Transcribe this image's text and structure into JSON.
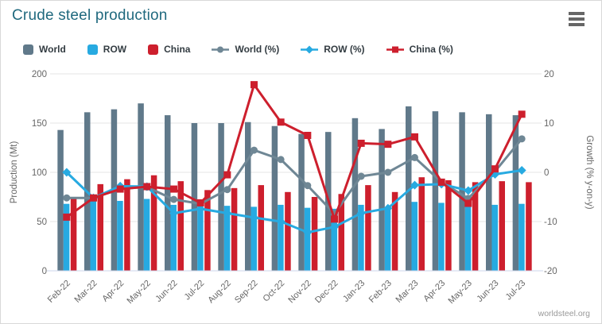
{
  "header": {
    "title": "Crude steel production",
    "menu_icon": "hamburger-icon"
  },
  "footer": {
    "credit": "worldsteel.org"
  },
  "colors": {
    "title": "#20697e",
    "axis_text": "#666666",
    "grid": "#e6e6e6",
    "axis_line": "#ccd6eb",
    "legend_text": "#333c42",
    "menu_icon": "#666666",
    "credit": "#999999"
  },
  "chart_data": {
    "type": "bar+line combo",
    "categories": [
      "Feb-22",
      "Mar-22",
      "Apr-22",
      "May-22",
      "Jun-22",
      "Jul-22",
      "Aug-22",
      "Sep-22",
      "Oct-22",
      "Nov-22",
      "Dec-22",
      "Jan-23",
      "Feb-23",
      "Mar-23",
      "Apr-23",
      "May-23",
      "Jun-23",
      "Jul-23"
    ],
    "bar_series": [
      {
        "name": "World",
        "color": "#60798a",
        "values": [
          143,
          161,
          164,
          170,
          158,
          150,
          150,
          151,
          147,
          139,
          141,
          155,
          144,
          167,
          162,
          161,
          159,
          158
        ]
      },
      {
        "name": "ROW",
        "color": "#27aae1",
        "values": [
          68,
          73,
          71,
          73,
          67,
          67,
          66,
          65,
          67,
          64,
          63,
          67,
          63,
          70,
          69,
          71,
          67,
          68
        ]
      },
      {
        "name": "China",
        "color": "#cd1f2d",
        "values": [
          75,
          88,
          93,
          97,
          91,
          82,
          84,
          87,
          80,
          75,
          78,
          87,
          80,
          95,
          92,
          90,
          91,
          90
        ]
      }
    ],
    "line_series": [
      {
        "name": "World (%)",
        "color": "#6f8795",
        "marker": "circle",
        "values": [
          -5.2,
          -5.2,
          -3.3,
          -3.0,
          -5.5,
          -6.4,
          -3.5,
          4.5,
          2.6,
          -2.7,
          -8.4,
          -0.8,
          0.0,
          3.0,
          -2.0,
          -5.3,
          0.2,
          6.8
        ]
      },
      {
        "name": "ROW (%)",
        "color": "#27aae1",
        "marker": "diamond",
        "values": [
          0.0,
          -5.2,
          -2.8,
          -2.9,
          -8.3,
          -7.4,
          -8.3,
          -9.2,
          -10.0,
          -12.2,
          -11.1,
          -8.3,
          -7.3,
          -2.6,
          -2.4,
          -3.7,
          -0.4,
          0.4
        ]
      },
      {
        "name": "China (%)",
        "color": "#cd1f2d",
        "marker": "square",
        "values": [
          -9.1,
          -5.2,
          -3.4,
          -2.9,
          -3.4,
          -6.2,
          -0.5,
          17.8,
          10.2,
          7.5,
          -9.5,
          5.9,
          5.7,
          7.2,
          -2.0,
          -6.3,
          0.7,
          11.8
        ]
      }
    ],
    "y_left": {
      "title": "Production (Mt)",
      "min": 0,
      "max": 200,
      "ticks": [
        0,
        50,
        100,
        150,
        200
      ]
    },
    "y_right": {
      "title": "Growth (% y-on-y)",
      "min": -20,
      "max": 20,
      "ticks": [
        -20,
        -10,
        0,
        10,
        20
      ]
    },
    "grid": "horizontal only",
    "legend_position": "top",
    "x_label_rotation": -45
  }
}
